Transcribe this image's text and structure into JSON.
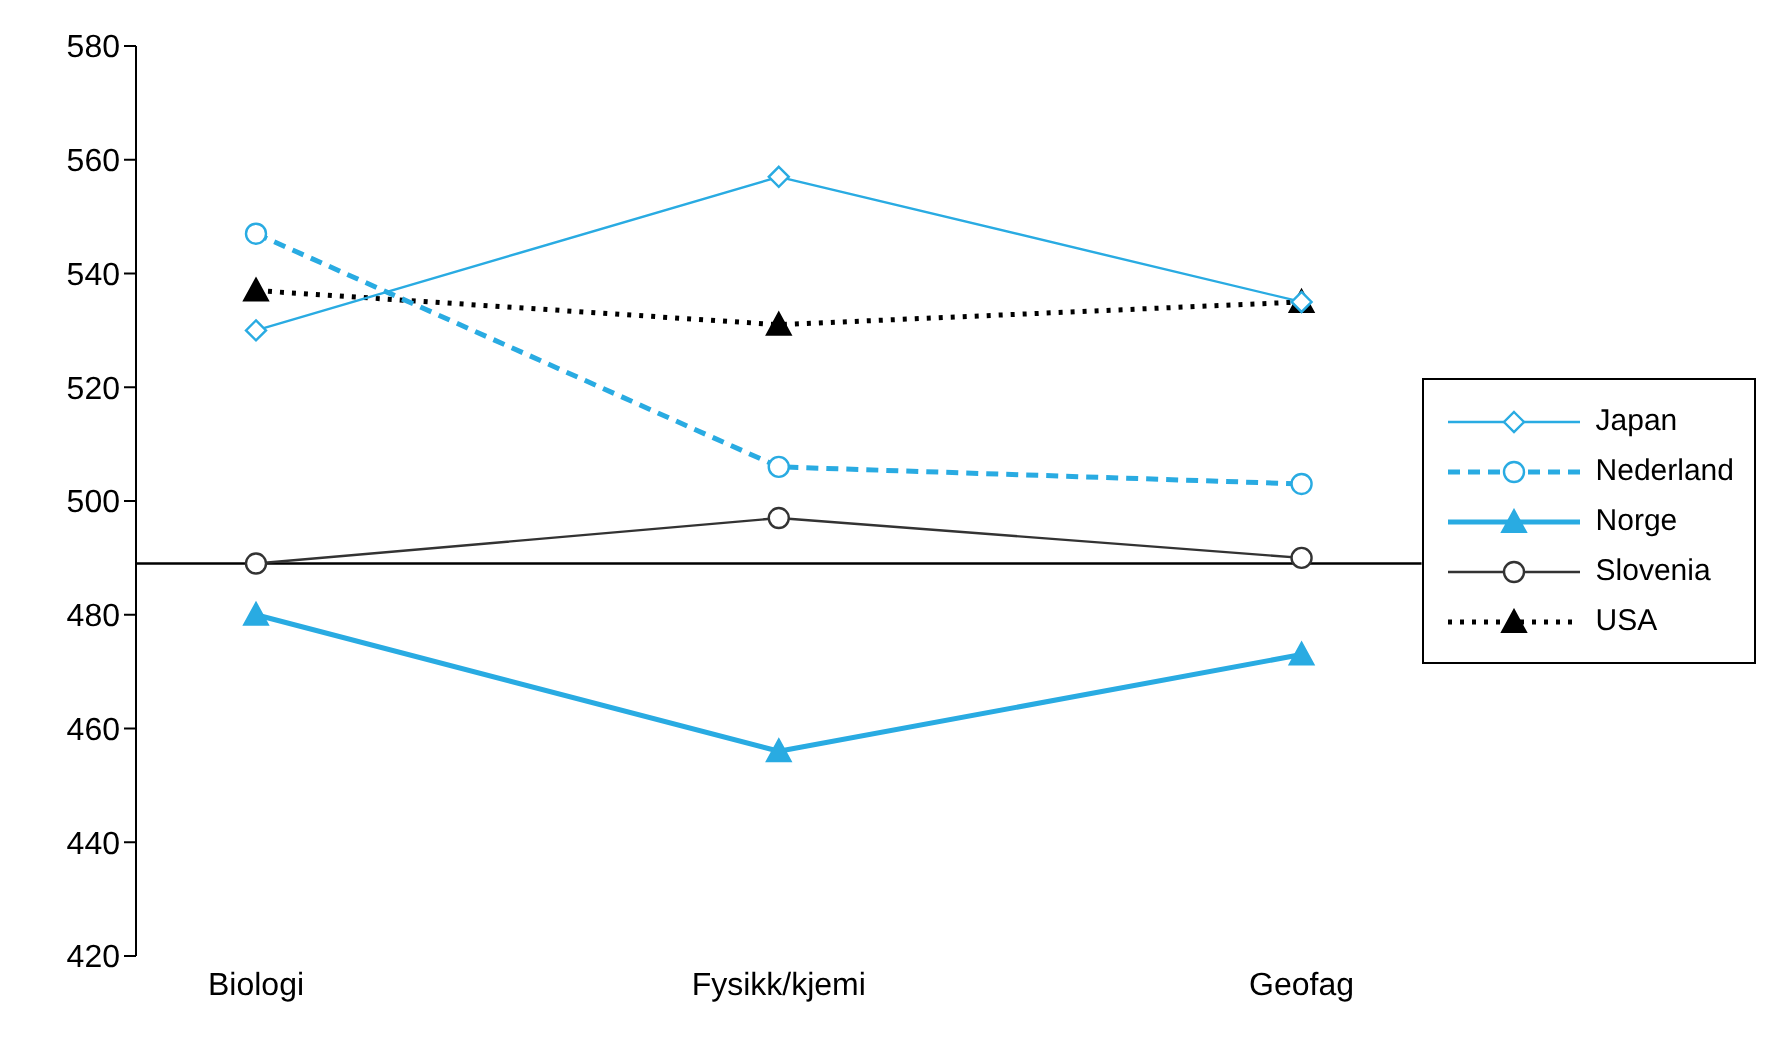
{
  "chart_data": {
    "type": "line",
    "categories": [
      "Biologi",
      "Fysikk/kjemi",
      "Geofag"
    ],
    "series": [
      {
        "name": "Japan",
        "color": "#29abe2",
        "values": [
          530,
          557,
          535
        ],
        "marker": "diamond",
        "line_style": "solid"
      },
      {
        "name": "Nederland",
        "color": "#29abe2",
        "values": [
          547,
          506,
          503
        ],
        "marker": "circle",
        "line_style": "dashed"
      },
      {
        "name": "Norge",
        "color": "#29abe2",
        "values": [
          480,
          456,
          473
        ],
        "marker": "triangle",
        "line_style": "solid"
      },
      {
        "name": "Slovenia",
        "color": "#333333",
        "values": [
          489,
          497,
          490
        ],
        "marker": "circle",
        "line_style": "solid"
      },
      {
        "name": "USA",
        "color": "#000000",
        "values": [
          537,
          531,
          535
        ],
        "marker": "triangle",
        "line_style": "dotted"
      }
    ],
    "ylim": [
      420,
      580
    ],
    "yticks": [
      420,
      440,
      460,
      480,
      500,
      520,
      540,
      560,
      580
    ],
    "ref_lines": [
      {
        "axis": "y",
        "value": 489,
        "color": "#000000"
      }
    ],
    "grid": false,
    "legend": "right"
  }
}
